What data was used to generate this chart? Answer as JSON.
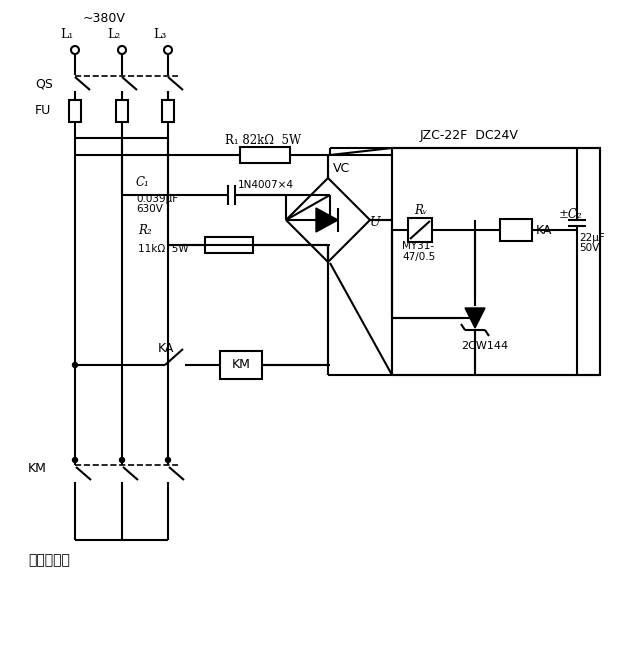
{
  "bg": "#ffffff",
  "lw": 1.5,
  "lw_thin": 1.2,
  "texts": {
    "voltage": "~380V",
    "L1": "L₁",
    "L2": "L₂",
    "L3": "L₃",
    "QS": "QS",
    "FU": "FU",
    "R1": "R₁ 82kΩ  5W",
    "C1": "C₁",
    "C1_val1": "0.039μF",
    "C1_val2": "630V",
    "IN4007": "1N4007×4",
    "VC": "VC",
    "R2": "R₂",
    "R2_val": "11kΩ  5W",
    "KA_sw": "KA",
    "KM_coil": "KM",
    "KM_sw": "KM",
    "U_label": "U",
    "Rv_label": "Rᵥ",
    "Rv_val1": "MY31-",
    "Rv_val2": "47/0.5",
    "KA_coil": "KA",
    "C2_label": "±C₂",
    "C2_val1": "22μF",
    "C2_val2": "50V",
    "JZC": "JZC-22F  DC24V",
    "diode2": "2CW144",
    "load": "至用电设备"
  }
}
